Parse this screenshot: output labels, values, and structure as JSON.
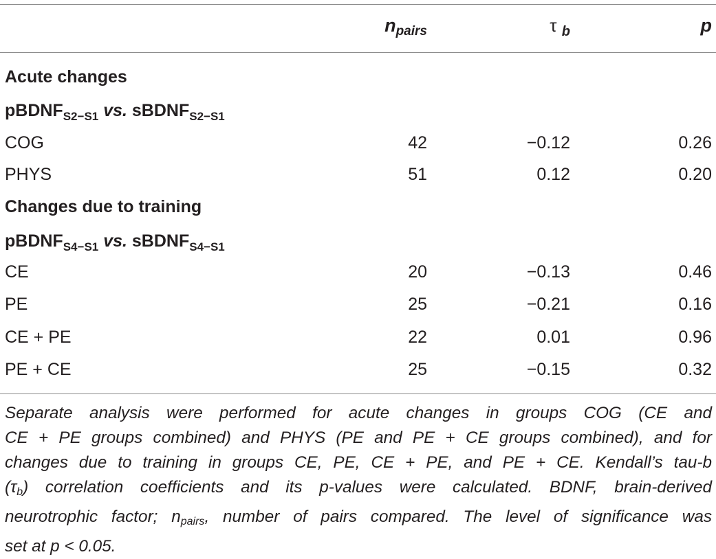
{
  "header": {
    "n_label": "n",
    "n_sub": "pairs",
    "tau_label": "τ",
    "tau_sub": "b",
    "p_label": "p"
  },
  "sections": [
    {
      "title": "Acute changes",
      "comparison": {
        "left": "pBDNF",
        "left_sub": "S2−S1",
        "vs": "vs.",
        "right": "sBDNF",
        "right_sub": "S2−S1"
      },
      "rows": [
        {
          "group": "COG",
          "n": "42",
          "tau": "−0.12",
          "p": "0.26"
        },
        {
          "group": "PHYS",
          "n": "51",
          "tau": "0.12",
          "p": "0.20"
        }
      ]
    },
    {
      "title": "Changes due to training",
      "comparison": {
        "left": "pBDNF",
        "left_sub": "S4−S1",
        "vs": "vs.",
        "right": "sBDNF",
        "right_sub": "S4−S1"
      },
      "rows": [
        {
          "group": "CE",
          "n": "20",
          "tau": "−0.13",
          "p": "0.46"
        },
        {
          "group": "PE",
          "n": "25",
          "tau": "−0.21",
          "p": "0.16"
        },
        {
          "group": "CE + PE",
          "n": "22",
          "tau": "0.01",
          "p": "0.96"
        },
        {
          "group": "PE + CE",
          "n": "25",
          "tau": "−0.15",
          "p": "0.32"
        }
      ]
    }
  ],
  "footnote": {
    "line1": "Separate analysis were performed for acute changes in groups COG (CE and",
    "line2": "CE + PE groups combined) and PHYS (PE and PE + CE groups combined), and for",
    "line3": "changes due to training in groups CE, PE, CE + PE, and PE + CE. Kendall’s tau-b",
    "line4_open": "(",
    "line4_tau": "τ",
    "line4_sub": "b",
    "line4_rest": ") correlation coefficients and its p-values were calculated. BDNF, brain-derived",
    "line5_a": "neurotrophic factor; n",
    "line5_sub": "pairs",
    "line5_b": ", number of pairs compared. The level of significance was",
    "line6": "set at p < 0.05."
  }
}
